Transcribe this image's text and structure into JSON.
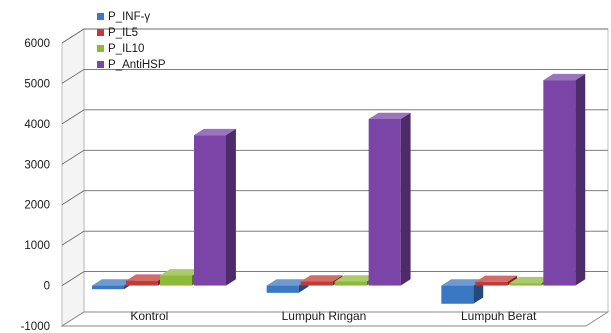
{
  "chart_data": {
    "type": "bar",
    "title": "",
    "xlabel": "",
    "ylabel": "",
    "ylim": [
      -1000,
      6000
    ],
    "yticks": [
      6000,
      5000,
      4000,
      3000,
      2000,
      1000,
      0,
      -1000
    ],
    "grid": true,
    "legend_position": "top-left",
    "categories": [
      "Kontrol",
      "Lumpuh Ringan",
      "Lumpuh Berat"
    ],
    "series": [
      {
        "name": "P_INF-γ",
        "color": "#3b78c2",
        "values": [
          -90,
          -180,
          -450
        ]
      },
      {
        "name": "P_IL5",
        "color": "#c23b36",
        "values": [
          120,
          100,
          90
        ]
      },
      {
        "name": "P_IL10",
        "color": "#8dba3b",
        "values": [
          250,
          100,
          60
        ]
      },
      {
        "name": "P_AntiHSP",
        "color": "#7b45a8",
        "values": [
          3720,
          4120,
          5080
        ]
      }
    ]
  }
}
